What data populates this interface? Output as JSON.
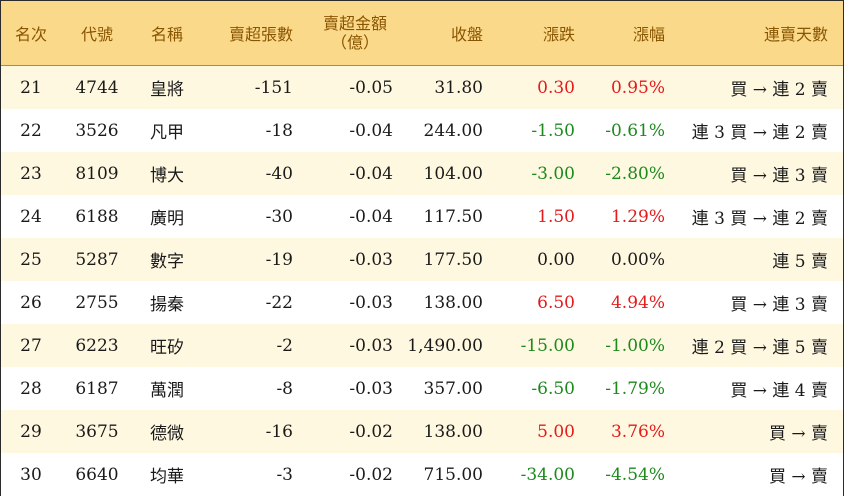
{
  "headers": {
    "rank": "名次",
    "code": "代號",
    "name": "名稱",
    "net_lots": "賣超張數",
    "net_amount_line1": "賣超金額",
    "net_amount_line2": "（億）",
    "close": "收盤",
    "change": "漲跌",
    "change_pct": "漲幅",
    "streak": "連賣天數"
  },
  "rows": [
    {
      "rank": "21",
      "code": "4744",
      "name": "皇將",
      "net_lots": "-151",
      "net_amount": "-0.05",
      "close": "31.80",
      "change": "0.30",
      "change_pct": "0.95%",
      "streak": "買 → 連 2 賣",
      "trend": "up"
    },
    {
      "rank": "22",
      "code": "3526",
      "name": "凡甲",
      "net_lots": "-18",
      "net_amount": "-0.04",
      "close": "244.00",
      "change": "-1.50",
      "change_pct": "-0.61%",
      "streak": "連 3 買 → 連 2 賣",
      "trend": "down"
    },
    {
      "rank": "23",
      "code": "8109",
      "name": "博大",
      "net_lots": "-40",
      "net_amount": "-0.04",
      "close": "104.00",
      "change": "-3.00",
      "change_pct": "-2.80%",
      "streak": "買 → 連 3 賣",
      "trend": "down"
    },
    {
      "rank": "24",
      "code": "6188",
      "name": "廣明",
      "net_lots": "-30",
      "net_amount": "-0.04",
      "close": "117.50",
      "change": "1.50",
      "change_pct": "1.29%",
      "streak": "連 3 買 → 連 2 賣",
      "trend": "up"
    },
    {
      "rank": "25",
      "code": "5287",
      "name": "數字",
      "net_lots": "-19",
      "net_amount": "-0.03",
      "close": "177.50",
      "change": "0.00",
      "change_pct": "0.00%",
      "streak": "連 5 賣",
      "trend": "flat"
    },
    {
      "rank": "26",
      "code": "2755",
      "name": "揚秦",
      "net_lots": "-22",
      "net_amount": "-0.03",
      "close": "138.00",
      "change": "6.50",
      "change_pct": "4.94%",
      "streak": "買 → 連 3 賣",
      "trend": "up"
    },
    {
      "rank": "27",
      "code": "6223",
      "name": "旺矽",
      "net_lots": "-2",
      "net_amount": "-0.03",
      "close": "1,490.00",
      "change": "-15.00",
      "change_pct": "-1.00%",
      "streak": "連 2 買 → 連 5 賣",
      "trend": "down"
    },
    {
      "rank": "28",
      "code": "6187",
      "name": "萬潤",
      "net_lots": "-8",
      "net_amount": "-0.03",
      "close": "357.00",
      "change": "-6.50",
      "change_pct": "-1.79%",
      "streak": "買 → 連 4 賣",
      "trend": "down"
    },
    {
      "rank": "29",
      "code": "3675",
      "name": "德微",
      "net_lots": "-16",
      "net_amount": "-0.02",
      "close": "138.00",
      "change": "5.00",
      "change_pct": "3.76%",
      "streak": "買 → 賣",
      "trend": "up"
    },
    {
      "rank": "30",
      "code": "6640",
      "name": "均華",
      "net_lots": "-3",
      "net_amount": "-0.02",
      "close": "715.00",
      "change": "-34.00",
      "change_pct": "-4.54%",
      "streak": "買 → 賣",
      "trend": "down"
    }
  ],
  "colors": {
    "header_bg": "#fbd98b",
    "header_text": "#8a5500",
    "row_alt_bg": "#fff8e1",
    "up": "#e31b1b",
    "down": "#1d8a1d"
  }
}
